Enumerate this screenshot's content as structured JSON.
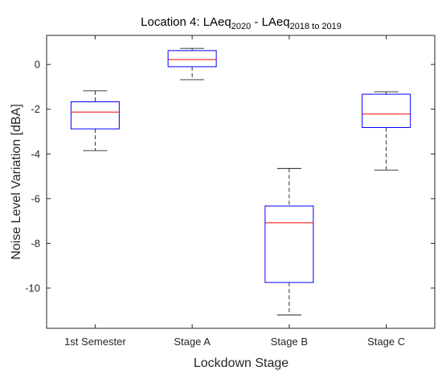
{
  "chart_data": {
    "type": "box",
    "title": {
      "prefix": "Location 4: LAeq",
      "sub1": "2020",
      "middle": " - LAeq",
      "sub2": "2018 to 2019"
    },
    "xlabel": "Lockdown Stage",
    "ylabel": "Noise Level Variation [dBA]",
    "ylim": [
      -11.8,
      1.3
    ],
    "yticks": [
      0,
      -2,
      -4,
      -6,
      -8,
      -10
    ],
    "grid": false,
    "categories": [
      "1st Semester",
      "Stage A",
      "Stage B",
      "Stage C"
    ],
    "boxes": [
      {
        "whisker_low": -3.85,
        "q1": -2.88,
        "median": -2.13,
        "q3": -1.67,
        "whisker_high": -1.18
      },
      {
        "whisker_low": -0.68,
        "q1": -0.1,
        "median": 0.22,
        "q3": 0.62,
        "whisker_high": 0.72
      },
      {
        "whisker_low": -11.2,
        "q1": -9.75,
        "median": -7.08,
        "q3": -6.33,
        "whisker_high": -4.65
      },
      {
        "whisker_low": -4.72,
        "q1": -2.82,
        "median": -2.22,
        "q3": -1.33,
        "whisker_high": -1.22
      }
    ],
    "colors": {
      "box": "#0000ff",
      "median": "#ff0000",
      "whisker": "#000000",
      "axis": "#262626"
    }
  }
}
